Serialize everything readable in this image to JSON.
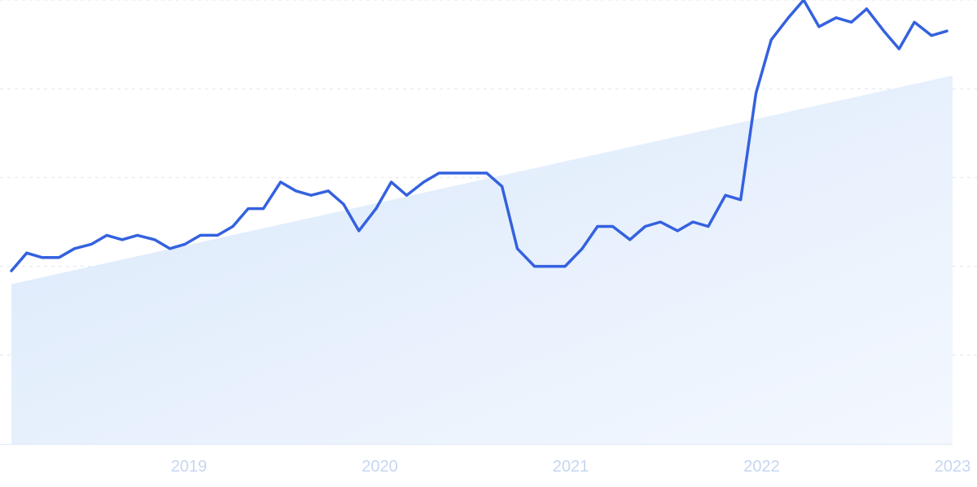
{
  "chart_data": {
    "type": "line",
    "title": "",
    "xlabel": "",
    "ylabel": "",
    "grid": true,
    "legend": "none",
    "x_tick_labels": [
      "2019",
      "2020",
      "2021",
      "2022",
      "2023"
    ],
    "xlim": [
      2018.07,
      2023.0
    ],
    "ylim": [
      0,
      100
    ],
    "series": [
      {
        "values_note_unit": "relative search interest (y-axis unlabeled)",
        "color": "#3461df",
        "points": [
          {
            "x": 2018.07,
            "y": 39
          },
          {
            "x": 2018.15,
            "y": 43
          },
          {
            "x": 2018.23,
            "y": 42
          },
          {
            "x": 2018.32,
            "y": 42
          },
          {
            "x": 2018.4,
            "y": 44
          },
          {
            "x": 2018.49,
            "y": 45
          },
          {
            "x": 2018.57,
            "y": 47
          },
          {
            "x": 2018.65,
            "y": 46
          },
          {
            "x": 2018.73,
            "y": 47
          },
          {
            "x": 2018.82,
            "y": 46
          },
          {
            "x": 2018.9,
            "y": 44
          },
          {
            "x": 2018.98,
            "y": 45
          },
          {
            "x": 2019.06,
            "y": 47
          },
          {
            "x": 2019.15,
            "y": 47
          },
          {
            "x": 2019.23,
            "y": 49
          },
          {
            "x": 2019.31,
            "y": 53
          },
          {
            "x": 2019.39,
            "y": 53
          },
          {
            "x": 2019.48,
            "y": 59
          },
          {
            "x": 2019.56,
            "y": 57
          },
          {
            "x": 2019.64,
            "y": 56
          },
          {
            "x": 2019.73,
            "y": 57
          },
          {
            "x": 2019.81,
            "y": 54
          },
          {
            "x": 2019.89,
            "y": 48
          },
          {
            "x": 2019.98,
            "y": 53
          },
          {
            "x": 2020.06,
            "y": 59
          },
          {
            "x": 2020.14,
            "y": 56
          },
          {
            "x": 2020.23,
            "y": 59
          },
          {
            "x": 2020.31,
            "y": 61
          },
          {
            "x": 2020.39,
            "y": 61
          },
          {
            "x": 2020.48,
            "y": 61
          },
          {
            "x": 2020.56,
            "y": 61
          },
          {
            "x": 2020.64,
            "y": 58
          },
          {
            "x": 2020.72,
            "y": 44
          },
          {
            "x": 2020.81,
            "y": 40
          },
          {
            "x": 2020.89,
            "y": 40
          },
          {
            "x": 2020.97,
            "y": 40
          },
          {
            "x": 2021.06,
            "y": 44
          },
          {
            "x": 2021.14,
            "y": 49
          },
          {
            "x": 2021.22,
            "y": 49
          },
          {
            "x": 2021.31,
            "y": 46
          },
          {
            "x": 2021.39,
            "y": 49
          },
          {
            "x": 2021.47,
            "y": 50
          },
          {
            "x": 2021.56,
            "y": 48
          },
          {
            "x": 2021.64,
            "y": 50
          },
          {
            "x": 2021.72,
            "y": 49
          },
          {
            "x": 2021.81,
            "y": 56
          },
          {
            "x": 2021.89,
            "y": 55
          },
          {
            "x": 2021.97,
            "y": 79
          },
          {
            "x": 2022.05,
            "y": 91
          },
          {
            "x": 2022.14,
            "y": 96
          },
          {
            "x": 2022.22,
            "y": 100
          },
          {
            "x": 2022.3,
            "y": 94
          },
          {
            "x": 2022.39,
            "y": 96
          },
          {
            "x": 2022.47,
            "y": 95
          },
          {
            "x": 2022.55,
            "y": 98
          },
          {
            "x": 2022.64,
            "y": 93
          },
          {
            "x": 2022.72,
            "y": 89
          },
          {
            "x": 2022.8,
            "y": 95
          },
          {
            "x": 2022.89,
            "y": 92
          },
          {
            "x": 2022.97,
            "y": 93
          }
        ]
      }
    ],
    "trend": {
      "fill_color": "#dbe9fb",
      "start": {
        "x": 2018.07,
        "y": 36
      },
      "end": {
        "x": 2023.0,
        "y": 83
      }
    }
  }
}
